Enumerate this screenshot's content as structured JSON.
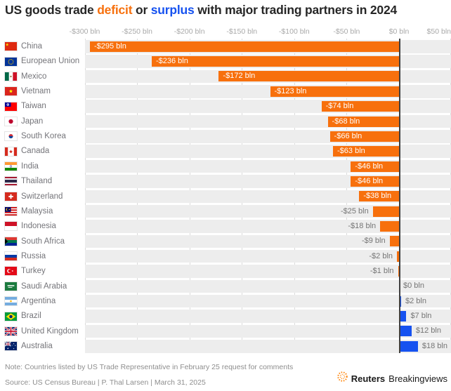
{
  "title": {
    "prefix": "US goods trade ",
    "deficit_word": "deficit",
    "middle": " or ",
    "surplus_word": "surplus",
    "suffix": " with major trading partners in 2024"
  },
  "axis": {
    "ticks": [
      {
        "value": -300,
        "label": "-$300 bln"
      },
      {
        "value": -250,
        "label": "-$250 bln"
      },
      {
        "value": -200,
        "label": "-$200 bln"
      },
      {
        "value": -150,
        "label": "-$150 bln"
      },
      {
        "value": -100,
        "label": "-$100 bln"
      },
      {
        "value": -50,
        "label": "-$50 bln"
      },
      {
        "value": 0,
        "label": "$0 bln"
      },
      {
        "value": 50,
        "label": "$50 bln"
      }
    ]
  },
  "chart_data": {
    "type": "bar",
    "orientation": "horizontal",
    "title": "US goods trade deficit or surplus with major trading partners in 2024",
    "unit": "US$ billion",
    "xlim": [
      -300,
      50
    ],
    "grid": true,
    "colors": {
      "deficit": "#F7700D",
      "surplus": "#1652F0"
    },
    "categories": [
      "China",
      "European Union",
      "Mexico",
      "Vietnam",
      "Taiwan",
      "Japan",
      "South Korea",
      "Canada",
      "India",
      "Thailand",
      "Switzerland",
      "Malaysia",
      "Indonesia",
      "South Africa",
      "Russia",
      "Turkey",
      "Saudi Arabia",
      "Argentina",
      "Brazil",
      "United Kingdom",
      "Australia"
    ],
    "values": [
      -295,
      -236,
      -172,
      -123,
      -74,
      -68,
      -66,
      -63,
      -46,
      -46,
      -38,
      -25,
      -18,
      -9,
      -2,
      -1,
      0,
      2,
      7,
      12,
      18
    ],
    "value_labels": [
      "-$295 bln",
      "-$236 bln",
      "-$172 bln",
      "-$123 bln",
      "-$74 bln",
      "-$68 bln",
      "-$66 bln",
      "-$63 bln",
      "-$46 bln",
      "-$46 bln",
      "-$38 bln",
      "-$25 bln",
      "-$18 bln",
      "-$9 bln",
      "-$2 bln",
      "-$1 bln",
      "$0 bln",
      "$2 bln",
      "$7 bln",
      "$12 bln",
      "$18 bln"
    ],
    "flags": [
      "cn",
      "eu",
      "mx",
      "vn",
      "tw",
      "jp",
      "kr",
      "ca",
      "in",
      "th",
      "ch",
      "my",
      "id",
      "za",
      "ru",
      "tr",
      "sa",
      "ar",
      "br",
      "gb",
      "au"
    ]
  },
  "footer": {
    "note": "Note: Countries listed by US Trade Representative in February 25 request for comments",
    "source": "Source: US Census Bureau | P. Thal Larsen | March 31, 2025",
    "logo": {
      "brand": "Reuters",
      "suffix": "Breakingviews"
    }
  }
}
